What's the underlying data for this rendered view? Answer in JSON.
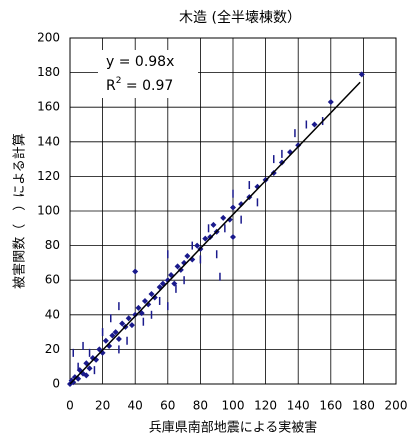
{
  "chart_data": {
    "type": "scatter",
    "title": "木造 (全半壊棟数）",
    "x_label": "兵庫県南部地震による実被害",
    "y_label": "被害関数（　）による計算",
    "xlim": [
      0,
      200
    ],
    "ylim": [
      0,
      200
    ],
    "xticks": [
      0,
      20,
      40,
      60,
      80,
      100,
      120,
      140,
      160,
      180,
      200
    ],
    "yticks": [
      0,
      20,
      40,
      60,
      80,
      100,
      120,
      140,
      160,
      180,
      200
    ],
    "grid": true,
    "equation_label": "y = 0.98x",
    "r2_label": {
      "base": "R",
      "sup": "2",
      "rest": " = 0.97"
    },
    "series": [
      {
        "marker": "diamond",
        "color": "#1a1a8c",
        "x": [
          0,
          1,
          2,
          3,
          5,
          6,
          8,
          10,
          12,
          14,
          16,
          18,
          20,
          22,
          24,
          26,
          28,
          30,
          32,
          34,
          36,
          38,
          40,
          42,
          44,
          46,
          48,
          50,
          52,
          55,
          57,
          60,
          62,
          64,
          66,
          68,
          70,
          72,
          75,
          78,
          80,
          83,
          86,
          88,
          90,
          94,
          98,
          100,
          105,
          110,
          115,
          120,
          125,
          130,
          135,
          140,
          150,
          160,
          179,
          40,
          100,
          10
        ],
        "values": [
          0,
          2,
          1,
          4,
          3,
          8,
          6,
          12,
          9,
          15,
          14,
          20,
          18,
          25,
          22,
          28,
          30,
          26,
          35,
          33,
          38,
          34,
          40,
          44,
          41,
          48,
          46,
          52,
          50,
          56,
          58,
          60,
          63,
          58,
          68,
          66,
          70,
          74,
          72,
          80,
          78,
          84,
          85,
          92,
          88,
          96,
          95,
          102,
          104,
          108,
          114,
          118,
          122,
          128,
          134,
          138,
          150,
          163,
          179,
          65,
          85,
          5
        ]
      },
      {
        "marker": "dash",
        "color": "#1a1a8c",
        "x": [
          2,
          5,
          8,
          12,
          15,
          20,
          25,
          30,
          35,
          45,
          50,
          55,
          60,
          65,
          70,
          75,
          80,
          85,
          90,
          95,
          100,
          105,
          110,
          115,
          125,
          130,
          138,
          145,
          155,
          92,
          60,
          30
        ],
        "values": [
          18,
          10,
          22,
          18,
          8,
          30,
          38,
          20,
          25,
          36,
          40,
          48,
          45,
          55,
          60,
          80,
          72,
          90,
          75,
          90,
          110,
          95,
          115,
          105,
          130,
          133,
          145,
          150,
          152,
          62,
          75,
          45
        ]
      }
    ],
    "fit_line": {
      "color": "#000000",
      "x": [
        0,
        178
      ],
      "values": [
        0,
        174.4
      ]
    }
  }
}
